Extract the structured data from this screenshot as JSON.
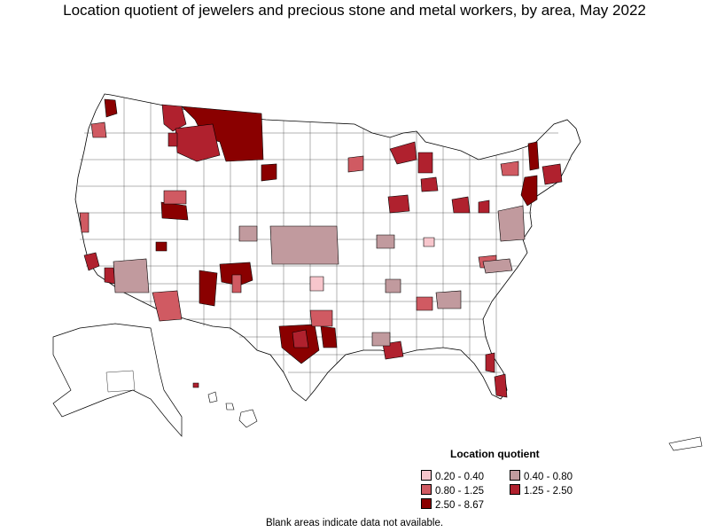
{
  "title": "Location quotient of jewelers and precious stone and metal workers, by area, May 2022",
  "legend": {
    "title": "Location quotient",
    "items": [
      {
        "label": "0.20 - 0.40",
        "color": "#f7c6cc"
      },
      {
        "label": "0.40 - 0.80",
        "color": "#c19a9e"
      },
      {
        "label": "0.80 - 1.25",
        "color": "#d05a62"
      },
      {
        "label": "1.25 - 2.50",
        "color": "#b0212e"
      },
      {
        "label": "2.50 - 8.67",
        "color": "#8a0000"
      }
    ]
  },
  "footnote": "Blank areas indicate data not available.",
  "colors": {
    "na": "#ffffff",
    "border": "#000000"
  }
}
